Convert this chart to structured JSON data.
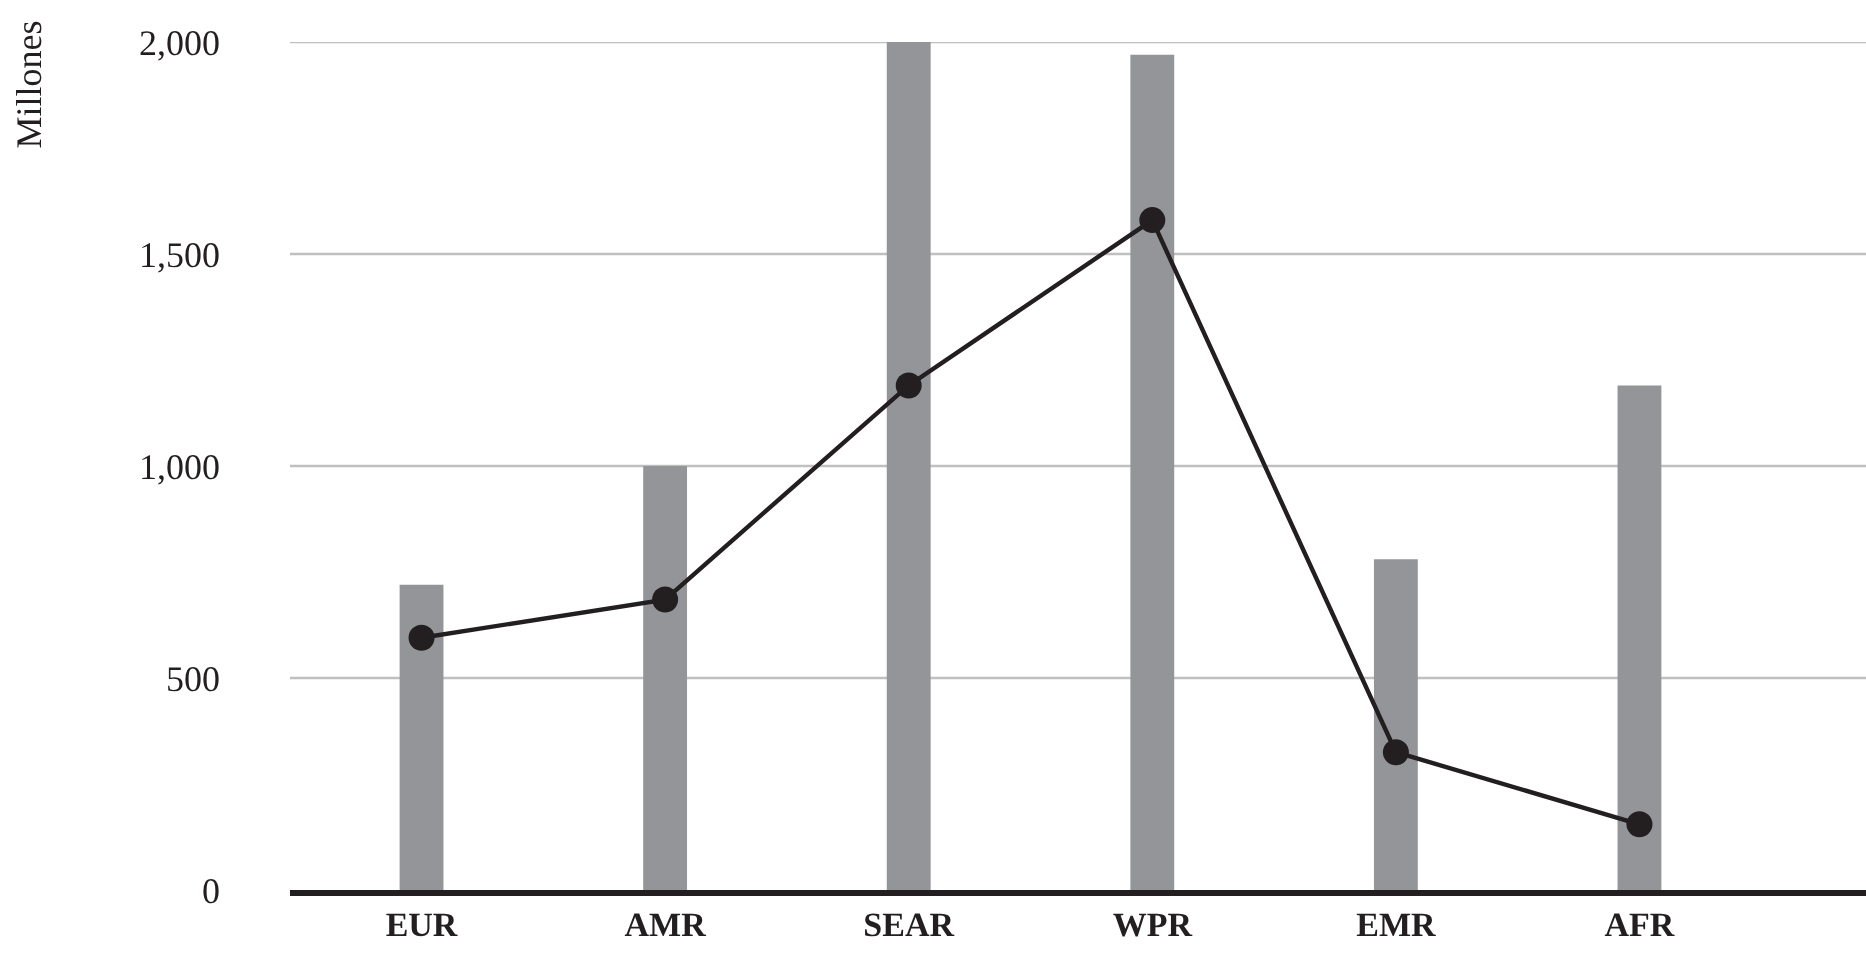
{
  "chart_data": {
    "type": "bar",
    "ylabel": "Millones",
    "categories": [
      "EUR",
      "AMR",
      "SEAR",
      "WPR",
      "EMR",
      "AFR"
    ],
    "series": [
      {
        "color": "#939598",
        "values": [
          720,
          1000,
          2000,
          1970,
          780,
          1190
        ]
      },
      {
        "type": "line",
        "color": "#231f20",
        "values": [
          595,
          685,
          1190,
          1580,
          325,
          155
        ],
        "marker": "circle",
        "line_style": "solid"
      }
    ],
    "ylim": [
      0,
      2000
    ],
    "yticks": [
      {
        "value": 0,
        "label": "0"
      },
      {
        "value": 500,
        "label": "500"
      },
      {
        "value": 1000,
        "label": "1,000"
      },
      {
        "value": 1500,
        "label": "1,500"
      },
      {
        "value": 2000,
        "label": "2,000"
      }
    ],
    "grid": "y"
  }
}
